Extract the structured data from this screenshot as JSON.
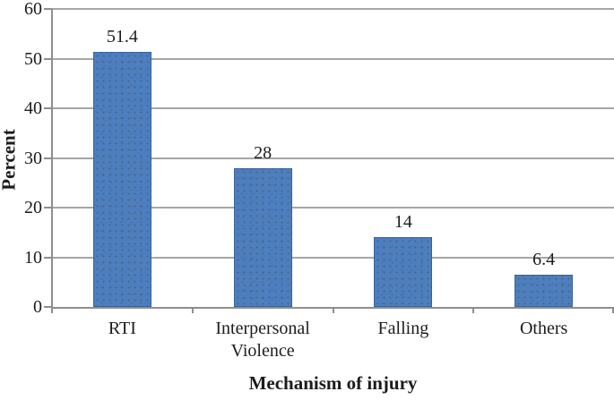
{
  "chart_data": {
    "type": "bar",
    "title": "",
    "categories": [
      "RTI",
      "Interpersonal Violence",
      "Falling",
      "Others"
    ],
    "values": [
      51.4,
      28,
      14,
      6.4
    ],
    "value_labels": [
      "51.4",
      "28",
      "14",
      "6.4"
    ],
    "xlabel": "Mechanism of injury",
    "ylabel": "Percent",
    "ylim": [
      0,
      60
    ],
    "yticks": [
      0,
      10,
      20,
      30,
      40,
      50,
      60
    ],
    "ytick_labels": [
      "0",
      "10",
      "20",
      "30",
      "40",
      "50",
      "60"
    ],
    "grid": true,
    "legend_position": "none",
    "colors": {
      "bar_fill": "#4d7ebe",
      "bar_border": "#2c548c",
      "gridline": "#a6a6a6",
      "axis": "#8e8e8e",
      "text": "#1c1c1c",
      "background": "#ffffff"
    }
  }
}
